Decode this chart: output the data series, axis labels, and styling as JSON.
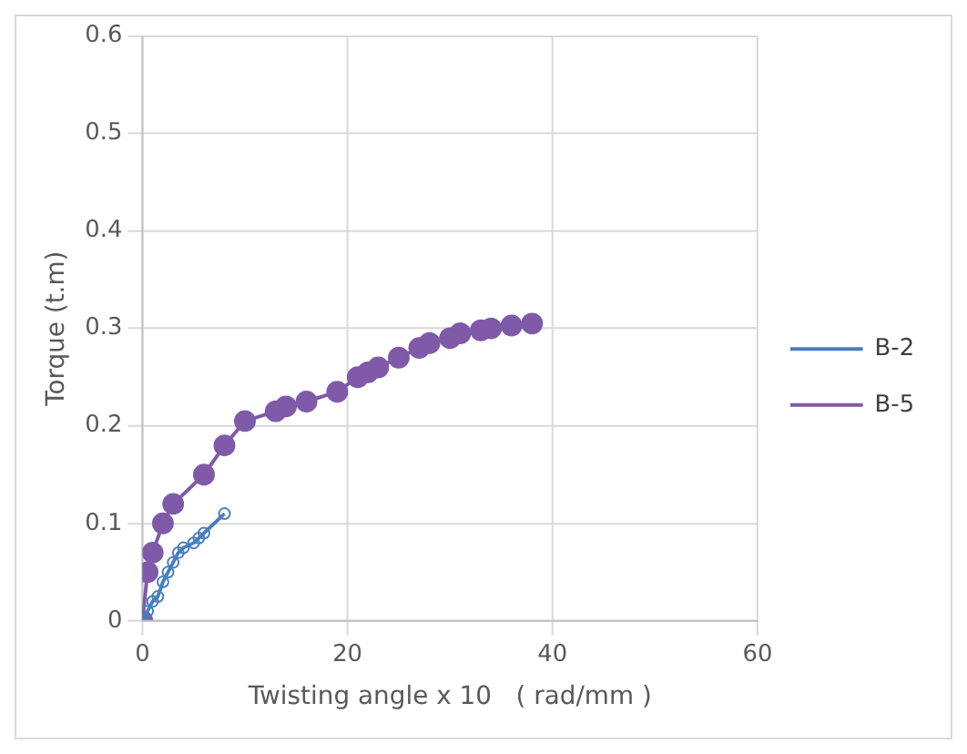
{
  "chart_data": {
    "type": "line",
    "xlabel": "Twisting angle x 10   ( rad/mm )",
    "ylabel": "Torque (t.m)",
    "xlim": [
      0,
      60
    ],
    "xticks": [
      0,
      20,
      40,
      60
    ],
    "ylim": [
      0,
      0.6
    ],
    "yticks": [
      0,
      0.1,
      0.2,
      0.3,
      0.4,
      0.5,
      0.6
    ],
    "grid": true,
    "legend": "right",
    "series": [
      {
        "name": "B-2",
        "color": "#4a7ebb",
        "marker": "circle",
        "x": [
          0,
          0.5,
          1,
          1.5,
          2,
          2.5,
          3,
          3.5,
          4,
          5,
          5.5,
          6,
          8
        ],
        "values": [
          0,
          0.01,
          0.02,
          0.025,
          0.04,
          0.05,
          0.06,
          0.07,
          0.075,
          0.08,
          0.085,
          0.09,
          0.11
        ]
      },
      {
        "name": "B-5",
        "color": "#7f5aa8",
        "marker": "circle",
        "x": [
          0,
          0.5,
          1,
          2,
          3,
          6,
          8,
          10,
          13,
          14,
          16,
          19,
          21,
          22,
          23,
          25,
          27,
          28,
          30,
          31,
          33,
          34,
          36,
          38
        ],
        "values": [
          0,
          0.05,
          0.07,
          0.1,
          0.12,
          0.15,
          0.18,
          0.205,
          0.215,
          0.22,
          0.225,
          0.235,
          0.25,
          0.255,
          0.26,
          0.27,
          0.28,
          0.285,
          0.29,
          0.295,
          0.298,
          0.3,
          0.303,
          0.305
        ]
      }
    ]
  }
}
